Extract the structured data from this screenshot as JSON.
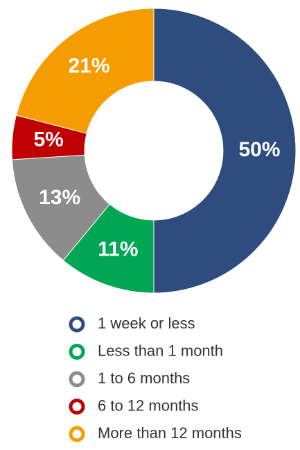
{
  "chart_data": {
    "type": "donut",
    "categories": [
      "1 week or less",
      "Less than 1 month",
      "1 to 6 months",
      "6 to 12 months",
      "More than 12 months"
    ],
    "values": [
      50,
      11,
      13,
      5,
      21
    ],
    "value_labels": [
      "50%",
      "11%",
      "13%",
      "5%",
      "21%"
    ],
    "colors": [
      "#2e4d7e",
      "#00a651",
      "#8c8c8c",
      "#c00000",
      "#f59c00"
    ],
    "legend": "bottom"
  }
}
